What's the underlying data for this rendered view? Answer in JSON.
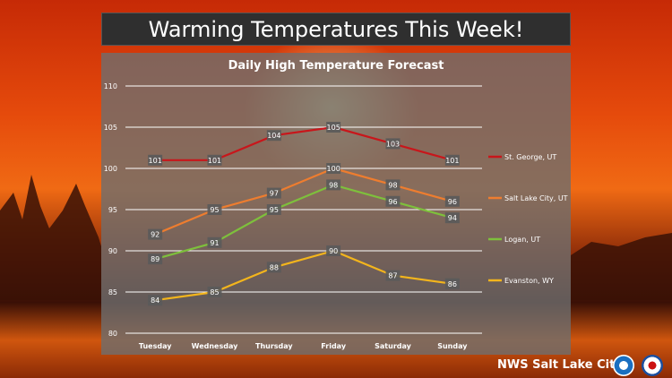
{
  "banner": {
    "title": "Warming Temperatures This Week!"
  },
  "footer": {
    "office": "NWS Salt Lake City",
    "logos": [
      "noaa-logo",
      "nws-logo"
    ]
  },
  "chart_data": {
    "type": "line",
    "title": "Daily High Temperature Forecast",
    "xlabel": "",
    "ylabel": "",
    "categories": [
      "Tuesday",
      "Wednesday",
      "Thursday",
      "Friday",
      "Saturday",
      "Sunday"
    ],
    "ylim": [
      80,
      110
    ],
    "yticks": [
      80,
      85,
      90,
      95,
      100,
      105,
      110
    ],
    "grid": true,
    "legend_position": "right",
    "series": [
      {
        "name": "St. George, UT",
        "color": "#c8161b",
        "values": [
          101,
          101,
          104,
          105,
          103,
          101
        ]
      },
      {
        "name": "Salt Lake City, UT",
        "color": "#ee7d2f",
        "values": [
          92,
          95,
          97,
          100,
          98,
          96
        ]
      },
      {
        "name": "Logan, UT",
        "color": "#7ec03c",
        "values": [
          89,
          91,
          95,
          98,
          96,
          94
        ]
      },
      {
        "name": "Evanston, WY",
        "color": "#f3b51c",
        "values": [
          84,
          85,
          88,
          90,
          87,
          86
        ]
      }
    ]
  }
}
